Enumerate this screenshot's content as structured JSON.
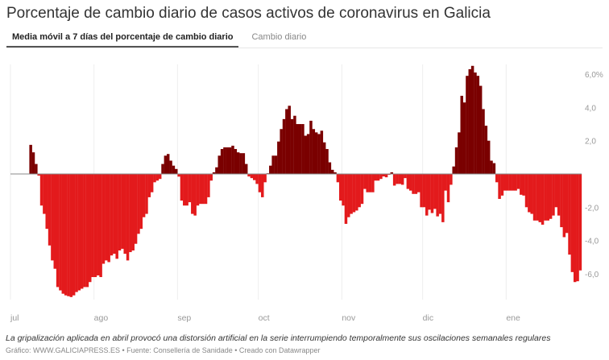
{
  "title": "Porcentaje de cambio diario de casos activos de coronavirus en Galicia",
  "tabs": [
    {
      "label": "Media móvil a 7 días del porcentaje de cambio diario",
      "active": true
    },
    {
      "label": "Cambio diario",
      "active": false
    }
  ],
  "note": "La gripalización aplicada en abril provocó una distorsión artificial en la serie interrumpiendo temporalmente sus oscilaciones semanales regulares",
  "footer": "Gráfico: WWW.GALICIAPRESS.ES • Fuente: Consellería de Sanidade • Creado con Datawrapper",
  "colors": {
    "positive": "#7a0000",
    "negative": "#e31a1c",
    "zero_line": "#888888",
    "grid": "#eeeeee",
    "tick_text": "#999999"
  },
  "chart_data": {
    "type": "bar",
    "title": "Porcentaje de cambio diario de casos activos de coronavirus en Galicia",
    "xlabel": "",
    "ylabel": "",
    "ylim": [
      -7.6,
      6.3
    ],
    "first_bar_day": 7,
    "x_unit": "days since 1 jul",
    "x_ticks": [
      {
        "label": "jul",
        "day": 0
      },
      {
        "label": "ago",
        "day": 31
      },
      {
        "label": "sep",
        "day": 62
      },
      {
        "label": "oct",
        "day": 92
      },
      {
        "label": "nov",
        "day": 123
      },
      {
        "label": "dic",
        "day": 153
      },
      {
        "label": "ene",
        "day": 184
      }
    ],
    "y_ticks": [
      {
        "label": "6,0%",
        "value": 6
      },
      {
        "label": "4,0",
        "value": 4
      },
      {
        "label": "2,0",
        "value": 2
      },
      {
        "label": "-2,0",
        "value": -2
      },
      {
        "label": "-4,0",
        "value": -4
      },
      {
        "label": "-6,0",
        "value": -6
      }
    ],
    "values": [
      1.75,
      1.3,
      0.6,
      -0.1,
      -1.9,
      -2.4,
      -3.3,
      -4.3,
      -5.2,
      -5.7,
      -6.8,
      -7.0,
      -7.2,
      -7.3,
      -7.35,
      -7.4,
      -7.3,
      -7.1,
      -7.0,
      -6.9,
      -6.8,
      -6.8,
      -6.5,
      -6.2,
      -6.2,
      -6.1,
      -6.2,
      -5.4,
      -5.2,
      -5.3,
      -4.9,
      -4.8,
      -5.1,
      -4.6,
      -4.5,
      -4.8,
      -5.2,
      -4.7,
      -4.6,
      -4.2,
      -3.6,
      -3.3,
      -2.6,
      -2.4,
      -1.4,
      -1.1,
      -0.5,
      -0.4,
      -0.3,
      0.6,
      1.1,
      1.2,
      0.8,
      0.5,
      0.3,
      -0.16,
      -1.6,
      -1.9,
      -1.9,
      -1.7,
      -2.4,
      -2.5,
      -1.9,
      -1.8,
      -1.8,
      -1.8,
      -1.4,
      -0.4,
      0.1,
      0.4,
      1.1,
      1.5,
      1.6,
      1.6,
      1.6,
      1.7,
      1.5,
      1.3,
      1.25,
      1.25,
      0.6,
      -0.15,
      -0.25,
      -0.37,
      -0.6,
      -1.1,
      -1.4,
      -0.5,
      0.04,
      0.5,
      1.1,
      1.1,
      1.95,
      2.7,
      3.3,
      3.9,
      4.1,
      3.3,
      3.5,
      3.0,
      3.0,
      3.0,
      2.3,
      2.4,
      3.2,
      2.7,
      2.5,
      2.4,
      2.6,
      1.9,
      1.5,
      0.7,
      0.25,
      0.1,
      -0.5,
      -1.6,
      -1.9,
      -3.0,
      -2.6,
      -2.4,
      -2.3,
      -2.2,
      -2.0,
      -1.8,
      -0.9,
      -1.1,
      -1.1,
      -1.1,
      -0.4,
      -0.4,
      -0.3,
      -0.15,
      -0.2,
      -0.05,
      0.1,
      -0.7,
      -0.6,
      -0.6,
      -0.65,
      -0.25,
      -0.9,
      -1.0,
      -1.2,
      -1.2,
      -1.1,
      -2.0,
      -2.0,
      -2.5,
      -2.15,
      -2.35,
      -2.1,
      -2.55,
      -2.4,
      -2.9,
      -1.0,
      -1.7,
      -0.65,
      0.45,
      1.6,
      2.5,
      4.7,
      4.3,
      5.9,
      6.3,
      6.5,
      6.1,
      5.9,
      5.3,
      3.9,
      2.9,
      2.0,
      0.8,
      0.65,
      -0.5,
      -1.5,
      -1.3,
      -1.0,
      -1.0,
      -1.0,
      -1.0,
      -1.0,
      -0.9,
      -1.25,
      -1.3,
      -2.0,
      -2.3,
      -2.4,
      -2.8,
      -2.8,
      -2.9,
      -3.05,
      -2.8,
      -2.8,
      -2.7,
      -2.5,
      -2.0,
      -2.5,
      -3.2,
      -3.8,
      -3.55,
      -4.85,
      -5.9,
      -6.5,
      -6.45,
      -5.8
    ]
  }
}
